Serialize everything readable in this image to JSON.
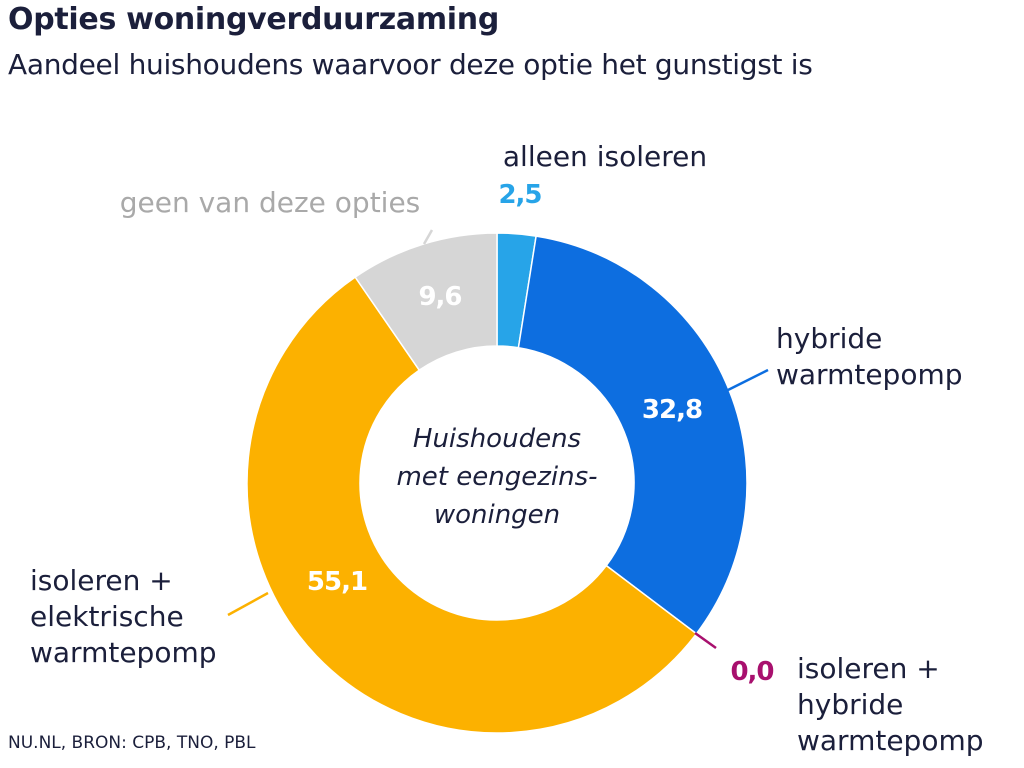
{
  "header": {
    "title": "Opties woningverduurzaming",
    "subtitle": "Aandeel huishoudens waarvoor deze optie het gunstigst is"
  },
  "footer": {
    "source": "NU.NL, BRON: CPB, TNO, PBL"
  },
  "chart_data": {
    "type": "pie",
    "donut": true,
    "center_label": [
      "Huishoudens",
      "met eengezins-",
      "woningen"
    ],
    "slices": [
      {
        "label": [
          "alleen isoleren"
        ],
        "value": 2.5,
        "value_label": "2,5",
        "color": "#27a4e8",
        "value_color": "#27a4e8"
      },
      {
        "label": [
          "hybride",
          "warmtepomp"
        ],
        "value": 32.8,
        "value_label": "32,8",
        "color": "#0d6ee0",
        "value_color": "#ffffff"
      },
      {
        "label": [
          "isoleren +",
          "hybride",
          "warmtepomp"
        ],
        "value": 0.0,
        "value_label": "0,0",
        "color": "#a8106e",
        "value_color": "#a8106e"
      },
      {
        "label": [
          "isoleren +",
          "elektrische",
          "warmtepomp"
        ],
        "value": 55.1,
        "value_label": "55,1",
        "color": "#fcb100",
        "value_color": "#ffffff"
      },
      {
        "label": [
          "geen van deze opties"
        ],
        "value": 9.6,
        "value_label": "9,6",
        "color": "#d6d6d6",
        "value_color": "#ffffff",
        "label_color": "#a9a9a9"
      }
    ]
  }
}
